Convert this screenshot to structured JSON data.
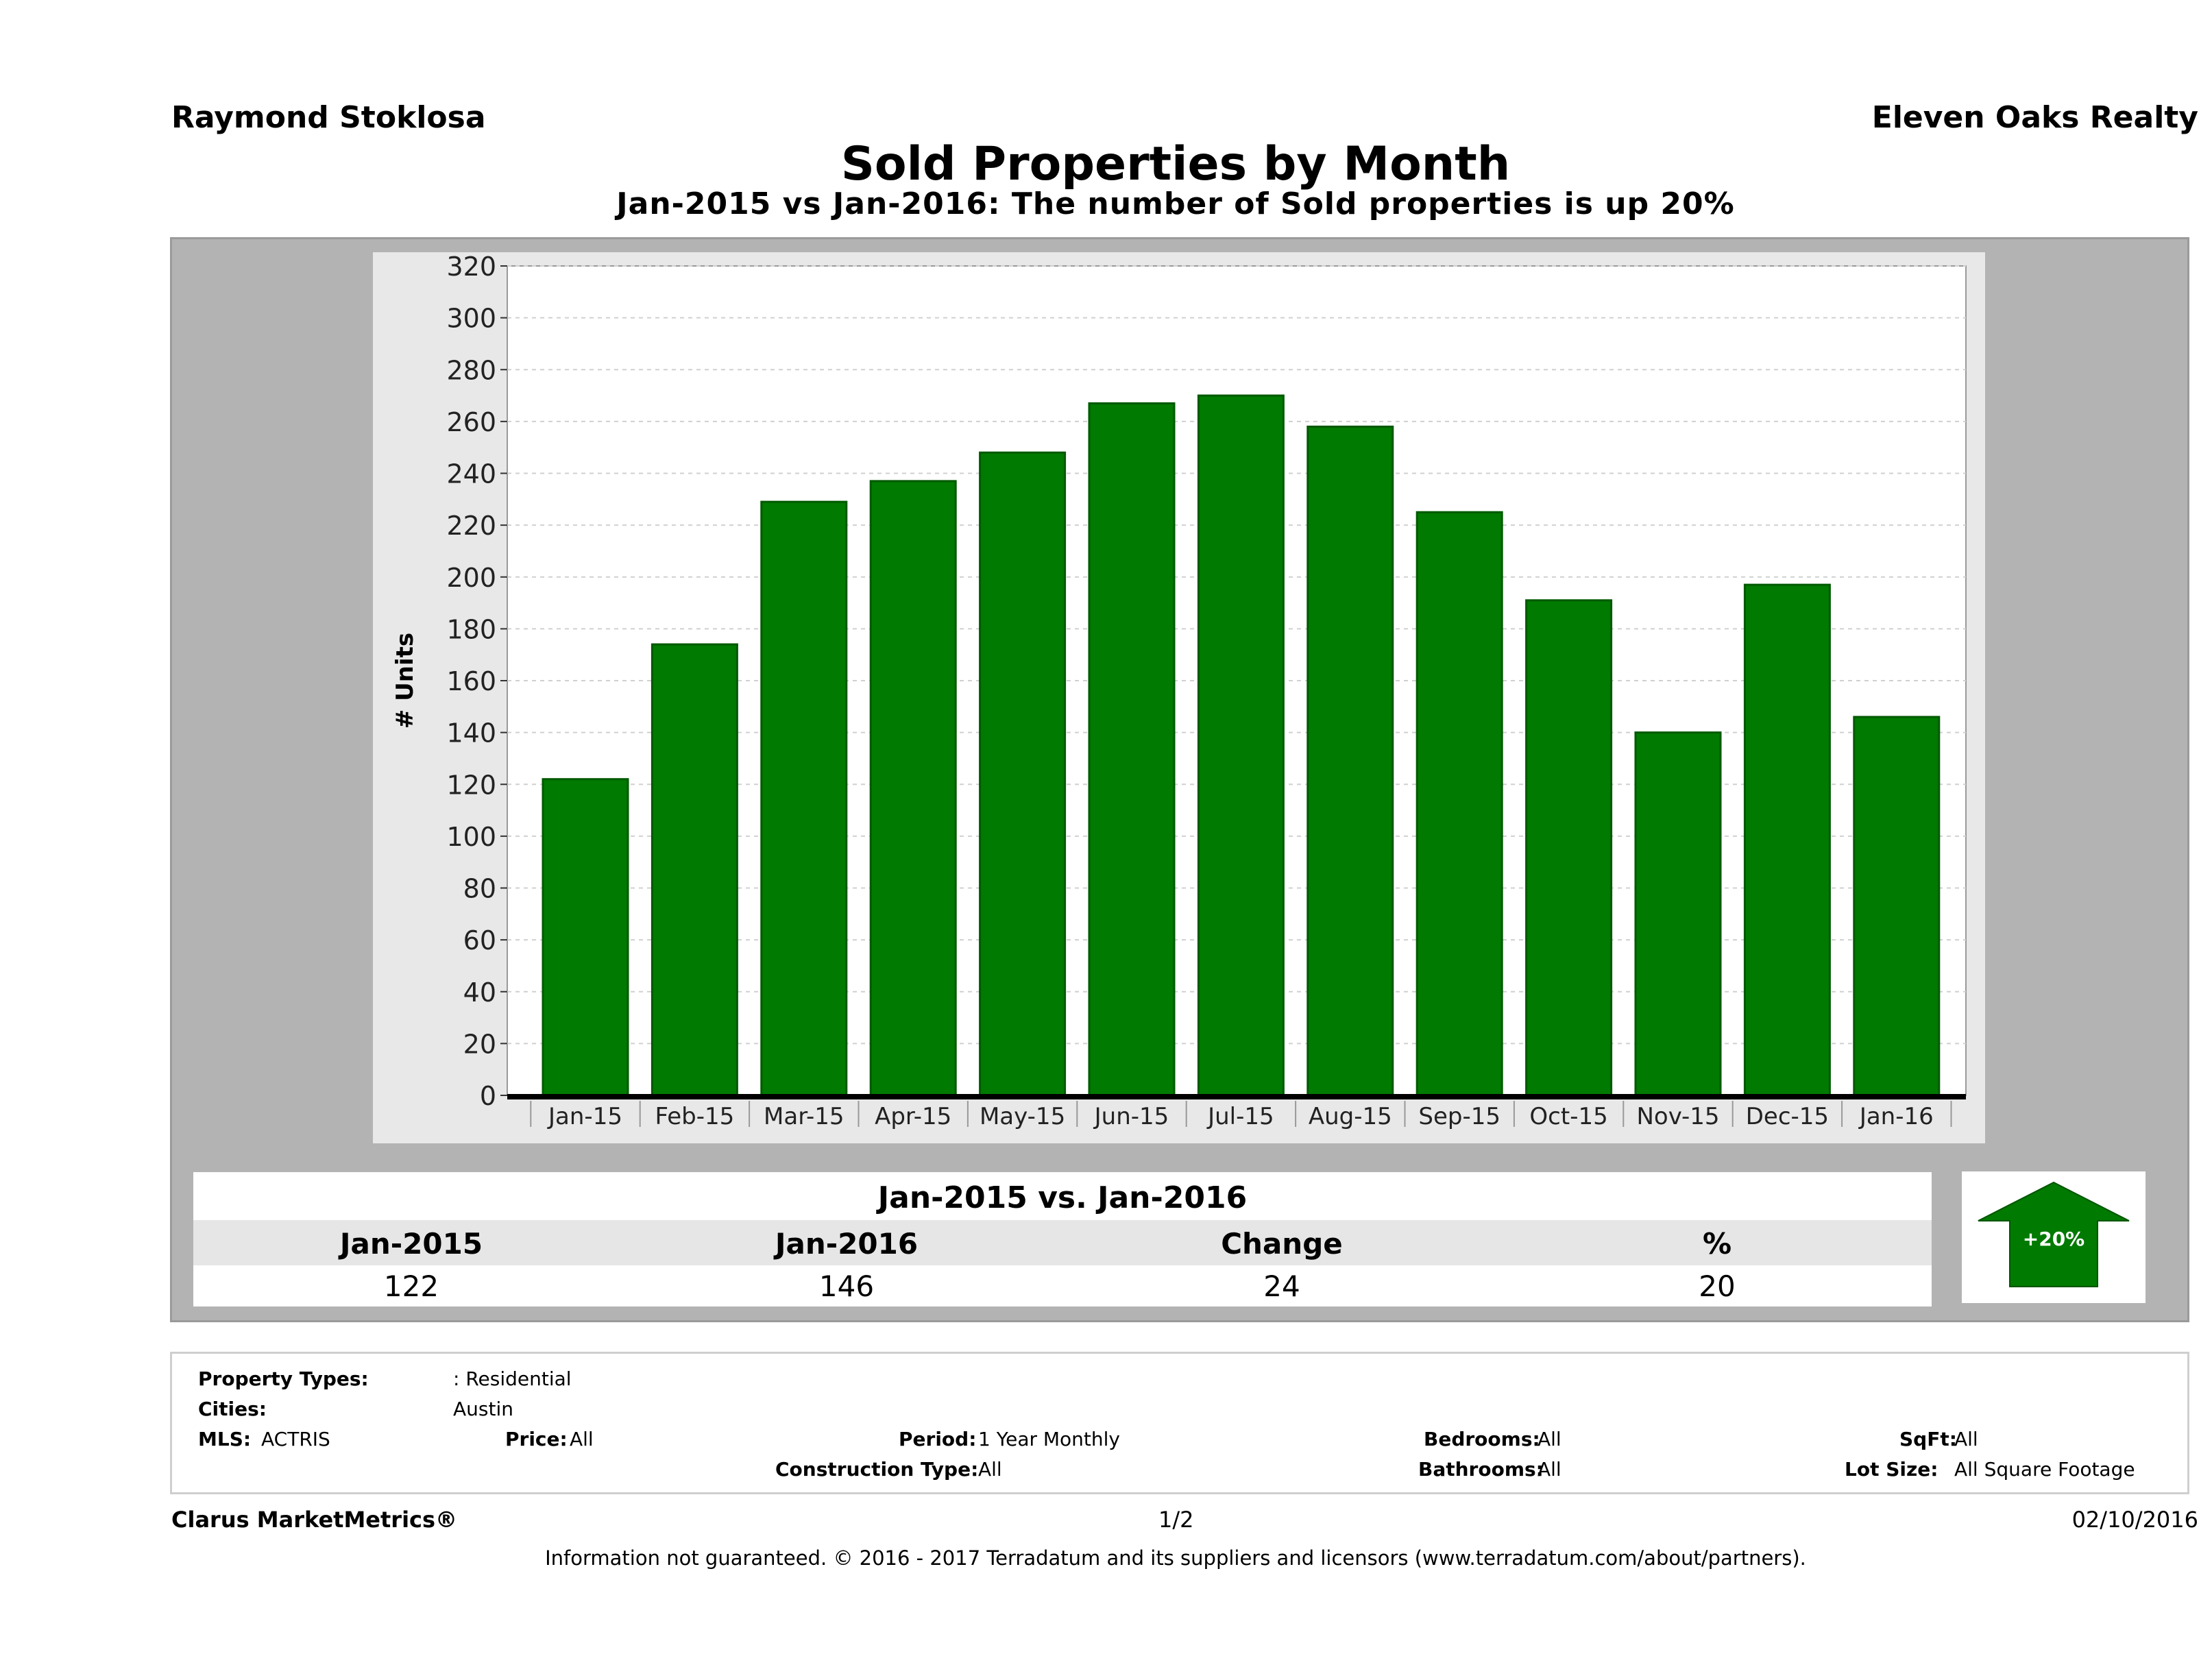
{
  "header": {
    "agent": "Raymond Stoklosa",
    "brokerage": "Eleven Oaks Realty",
    "title": "Sold Properties by Month",
    "subtitle": "Jan-2015 vs Jan-2016: The number of Sold  properties is up 20%"
  },
  "colors": {
    "bar": "#007a00",
    "panel": "#b3b3b3",
    "plot_bg": "#ffffff",
    "chart_bg": "#e8e8e8",
    "arrow": "#007a00"
  },
  "chart_data": {
    "type": "bar",
    "title": "Sold Properties by Month",
    "ylabel": "# Units",
    "xlabel": "",
    "categories": [
      "Jan-15",
      "Feb-15",
      "Mar-15",
      "Apr-15",
      "May-15",
      "Jun-15",
      "Jul-15",
      "Aug-15",
      "Sep-15",
      "Oct-15",
      "Nov-15",
      "Dec-15",
      "Jan-16"
    ],
    "values": [
      122,
      174,
      229,
      237,
      248,
      267,
      270,
      258,
      225,
      191,
      140,
      197,
      146
    ],
    "ylim": [
      0,
      320
    ],
    "yticks": [
      0,
      20,
      40,
      60,
      80,
      100,
      120,
      140,
      160,
      180,
      200,
      220,
      240,
      260,
      280,
      300,
      320
    ],
    "grid": true,
    "legend": "none"
  },
  "summary": {
    "title": "Jan-2015 vs. Jan-2016",
    "headers": [
      "Jan-2015",
      "Jan-2016",
      "Change",
      "%"
    ],
    "values": [
      "122",
      "146",
      "24",
      "20"
    ],
    "badge": "+20%"
  },
  "filters": {
    "property_types_label": "Property Types:",
    "property_types_value": ": Residential",
    "cities_label": "Cities:",
    "cities_value": "Austin",
    "mls_label": "MLS:",
    "mls_value": "ACTRIS",
    "price_label": "Price:",
    "price_value": "All",
    "period_label": "Period:",
    "period_value": "1 Year Monthly",
    "construction_label": "Construction Type:",
    "construction_value": "All",
    "bedrooms_label": "Bedrooms:",
    "bedrooms_value": "All",
    "bathrooms_label": "Bathrooms:",
    "bathrooms_value": "All",
    "sqft_label": "SqFt:",
    "sqft_value": "All",
    "lotsize_label": "Lot Size:",
    "lotsize_value": "All Square Footage"
  },
  "footer": {
    "product": "Clarus MarketMetrics®",
    "page": "1/2",
    "date": "02/10/2016",
    "disclaimer": "Information not guaranteed. © 2016 - 2017 Terradatum and its suppliers and licensors (www.terradatum.com/about/partners)."
  }
}
